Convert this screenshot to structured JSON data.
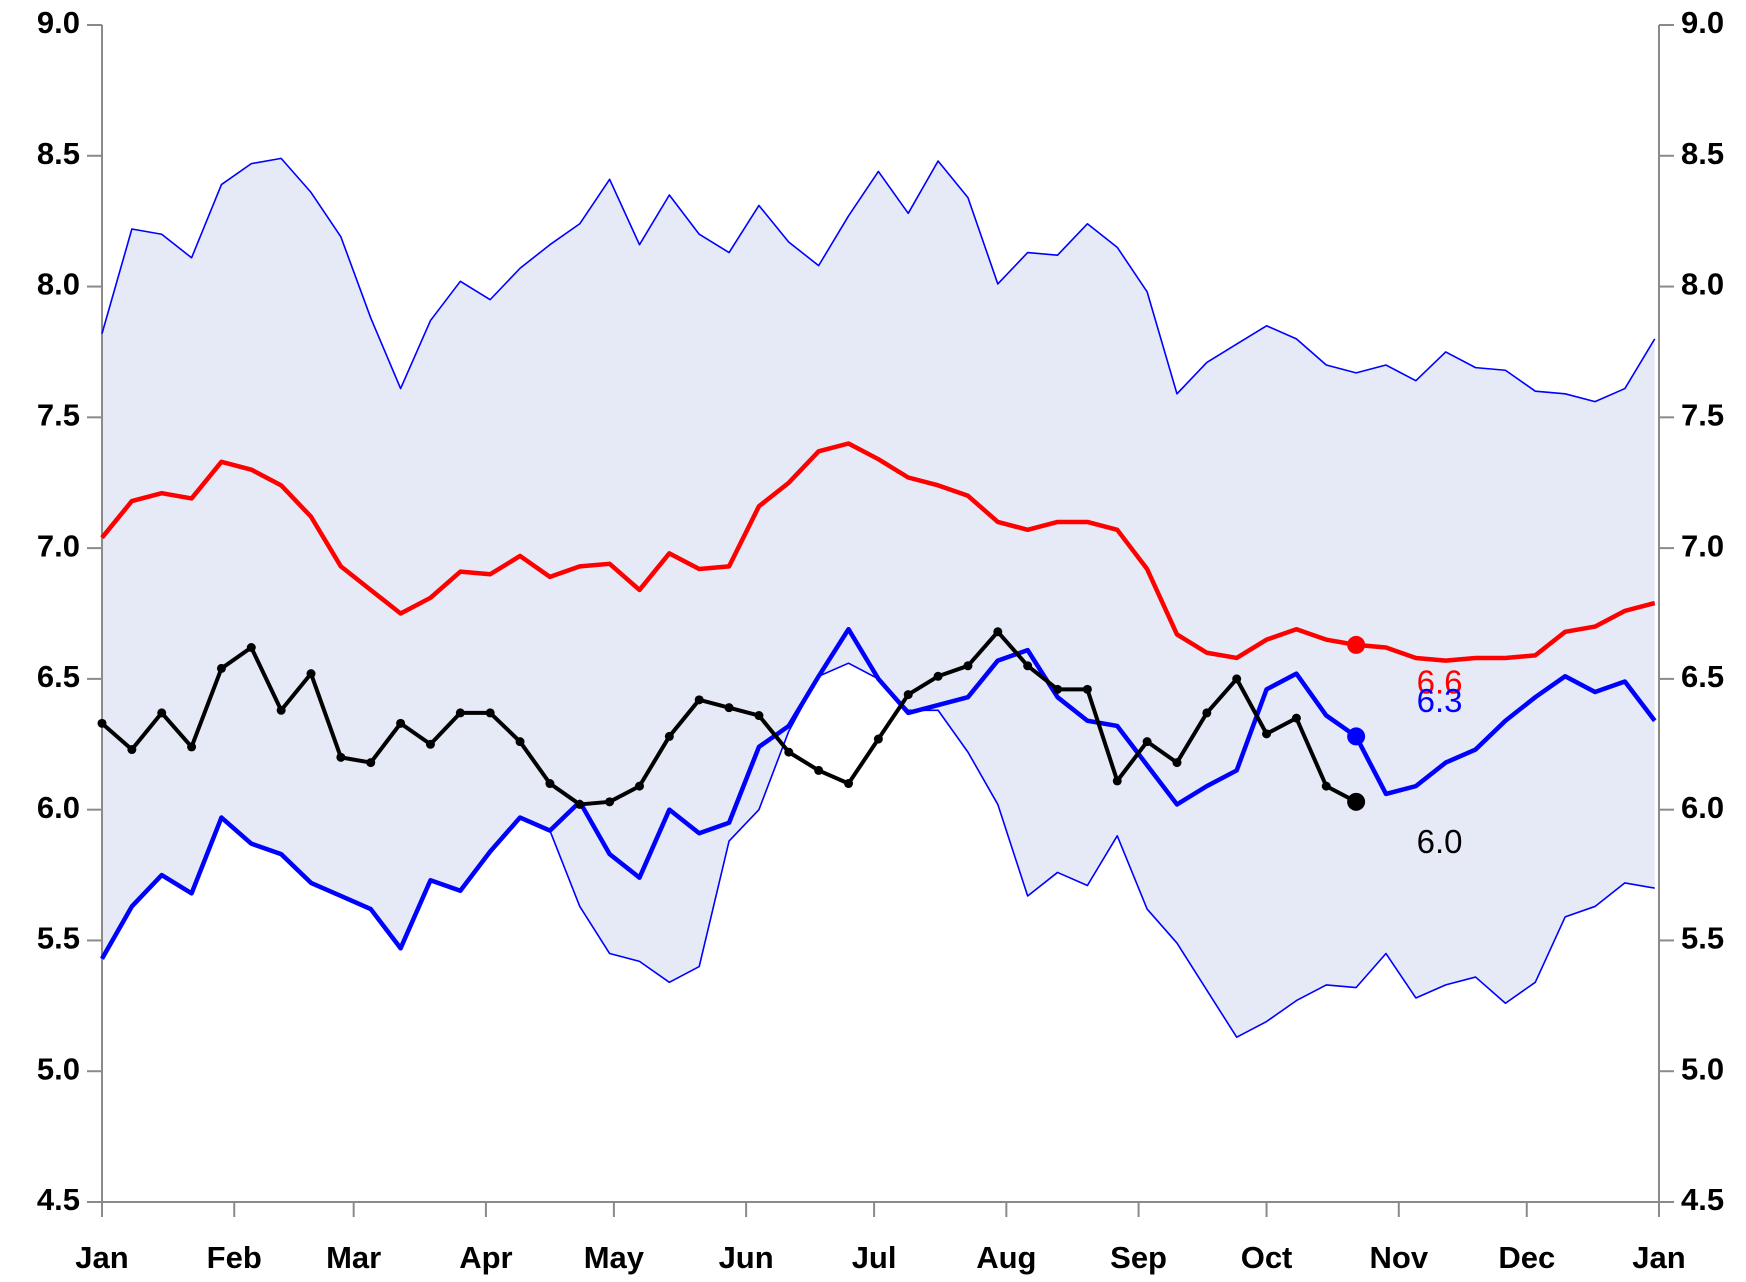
{
  "chart_data": {
    "type": "line",
    "x": [
      0,
      7,
      14,
      21,
      28,
      35,
      42,
      49,
      56,
      63,
      70,
      77,
      84,
      91,
      98,
      105,
      112,
      119,
      126,
      133,
      140,
      147,
      154,
      161,
      168,
      175,
      182,
      189,
      196,
      203,
      210,
      217,
      224,
      231,
      238,
      245,
      252,
      259,
      266,
      273,
      280,
      287,
      294,
      301,
      308,
      315,
      322,
      329,
      336,
      343,
      350,
      357,
      364
    ],
    "xlim": [
      0,
      365
    ],
    "xticks": [
      {
        "value": 0,
        "label": "Jan"
      },
      {
        "value": 31,
        "label": "Feb"
      },
      {
        "value": 59,
        "label": "Mar"
      },
      {
        "value": 90,
        "label": "Apr"
      },
      {
        "value": 120,
        "label": "May"
      },
      {
        "value": 151,
        "label": "Jun"
      },
      {
        "value": 181,
        "label": "Jul"
      },
      {
        "value": 212,
        "label": "Aug"
      },
      {
        "value": 243,
        "label": "Sep"
      },
      {
        "value": 273,
        "label": "Oct"
      },
      {
        "value": 304,
        "label": "Nov"
      },
      {
        "value": 334,
        "label": "Dec"
      },
      {
        "value": 365,
        "label": "Jan"
      }
    ],
    "ylim": [
      4.5,
      9
    ],
    "yticks": [
      4.5,
      {
        "value": 5,
        "label": "5.0"
      },
      5.5,
      {
        "value": 6,
        "label": "6.0"
      },
      6.5,
      {
        "value": 7,
        "label": "7.0"
      },
      7.5,
      {
        "value": 8,
        "label": "8.0"
      },
      8.5,
      {
        "value": 9,
        "label": "9.0"
      }
    ],
    "series": [
      {
        "color": "#0000ff",
        "width": 1.6,
        "fill": "#e6e9f6",
        "values": [
          7.82,
          8.22,
          8.2,
          8.11,
          8.39,
          8.47,
          8.49,
          8.36,
          8.19,
          7.88,
          7.61,
          7.87,
          8.02,
          7.95,
          8.07,
          8.16,
          8.24,
          8.41,
          8.16,
          8.35,
          8.2,
          8.13,
          8.31,
          8.17,
          8.08,
          8.27,
          8.44,
          8.28,
          8.48,
          8.34,
          8.01,
          8.13,
          8.12,
          8.24,
          8.15,
          7.98,
          7.59,
          7.71,
          7.78,
          7.85,
          7.8,
          7.7,
          7.67,
          7.7,
          7.64,
          7.75,
          7.69,
          7.68,
          7.6,
          7.59,
          7.56,
          7.61,
          7.8
        ]
      },
      {
        "color": "#0000ff",
        "width": 1.6,
        "values": [
          5.43,
          5.63,
          5.75,
          5.68,
          5.97,
          5.87,
          5.83,
          5.72,
          5.67,
          5.62,
          5.47,
          5.73,
          5.69,
          5.84,
          5.97,
          5.92,
          5.63,
          5.45,
          5.42,
          5.34,
          5.4,
          5.88,
          6.0,
          6.3,
          6.51,
          6.56,
          6.5,
          6.38,
          6.38,
          6.22,
          6.02,
          5.67,
          5.76,
          5.71,
          5.9,
          5.62,
          5.49,
          5.31,
          5.13,
          5.19,
          5.27,
          5.33,
          5.32,
          5.45,
          5.28,
          5.33,
          5.36,
          5.26,
          5.34,
          5.59,
          5.63,
          5.72,
          5.7
        ]
      },
      {
        "color": "#ff0000",
        "width": 4.5,
        "values": [
          7.04,
          7.18,
          7.21,
          7.19,
          7.33,
          7.3,
          7.24,
          7.12,
          6.93,
          6.84,
          6.75,
          6.81,
          6.91,
          6.9,
          6.97,
          6.89,
          6.93,
          6.94,
          6.84,
          6.98,
          6.92,
          6.93,
          7.16,
          7.25,
          7.37,
          7.4,
          7.34,
          7.27,
          7.24,
          7.2,
          7.1,
          7.07,
          7.1,
          7.1,
          7.07,
          6.92,
          6.67,
          6.6,
          6.58,
          6.65,
          6.69,
          6.65,
          6.63,
          6.62,
          6.58,
          6.57,
          6.58,
          6.58,
          6.59,
          6.68,
          6.7,
          6.76,
          6.79
        ],
        "value_labels": [
          null,
          null,
          null,
          null,
          null,
          null,
          null,
          null,
          null,
          null,
          null,
          null,
          null,
          null,
          null,
          null,
          null,
          null,
          null,
          null,
          null,
          null,
          null,
          null,
          null,
          null,
          null,
          null,
          null,
          null,
          null,
          null,
          null,
          null,
          null,
          null,
          null,
          null,
          null,
          null,
          null,
          null,
          "6.6",
          null,
          null,
          null,
          null,
          null,
          null,
          null,
          null,
          null,
          null
        ]
      },
      {
        "color": "#0000ff",
        "width": 4.5,
        "values": [
          5.43,
          5.63,
          5.75,
          5.68,
          5.97,
          5.87,
          5.83,
          5.72,
          5.67,
          5.62,
          5.47,
          5.73,
          5.69,
          5.84,
          5.97,
          5.92,
          6.03,
          5.83,
          5.74,
          6.0,
          5.91,
          5.95,
          6.24,
          6.32,
          6.51,
          6.69,
          6.5,
          6.37,
          6.4,
          6.43,
          6.57,
          6.61,
          6.43,
          6.34,
          6.32,
          6.17,
          6.02,
          6.09,
          6.15,
          6.46,
          6.52,
          6.36,
          6.28,
          6.06,
          6.09,
          6.18,
          6.23,
          6.34,
          6.43,
          6.51,
          6.45,
          6.49,
          6.34
        ],
        "value_labels": [
          null,
          null,
          null,
          null,
          null,
          null,
          null,
          null,
          null,
          null,
          null,
          null,
          null,
          null,
          null,
          null,
          null,
          null,
          null,
          null,
          null,
          null,
          null,
          null,
          null,
          null,
          null,
          null,
          null,
          null,
          null,
          null,
          null,
          null,
          null,
          null,
          null,
          null,
          null,
          null,
          null,
          null,
          "6.3",
          null,
          null,
          null,
          null,
          null,
          null,
          null,
          null,
          null,
          null
        ]
      },
      {
        "color": "#000000",
        "width": 4,
        "markers": true,
        "values": [
          6.33,
          6.23,
          6.37,
          6.24,
          6.54,
          6.62,
          6.38,
          6.52,
          6.2,
          6.18,
          6.33,
          6.25,
          6.37,
          6.37,
          6.26,
          6.1,
          6.02,
          6.03,
          6.09,
          6.28,
          6.42,
          6.39,
          6.36,
          6.22,
          6.15,
          6.1,
          6.27,
          6.44,
          6.51,
          6.55,
          6.68,
          6.55,
          6.46,
          6.46,
          6.11,
          6.26,
          6.18,
          6.37,
          6.5,
          6.29,
          6.35,
          6.09,
          6.03,
          null,
          null,
          null,
          null,
          null,
          null,
          null,
          null,
          null,
          null
        ],
        "value_labels": [
          null,
          null,
          null,
          null,
          null,
          null,
          null,
          null,
          null,
          null,
          null,
          null,
          null,
          null,
          null,
          null,
          null,
          null,
          null,
          null,
          null,
          null,
          null,
          null,
          null,
          null,
          null,
          null,
          null,
          null,
          null,
          null,
          null,
          null,
          null,
          null,
          null,
          null,
          null,
          null,
          null,
          null,
          "6.0",
          null,
          null,
          null,
          null,
          null,
          null,
          null,
          null,
          null,
          null
        ]
      }
    ]
  }
}
